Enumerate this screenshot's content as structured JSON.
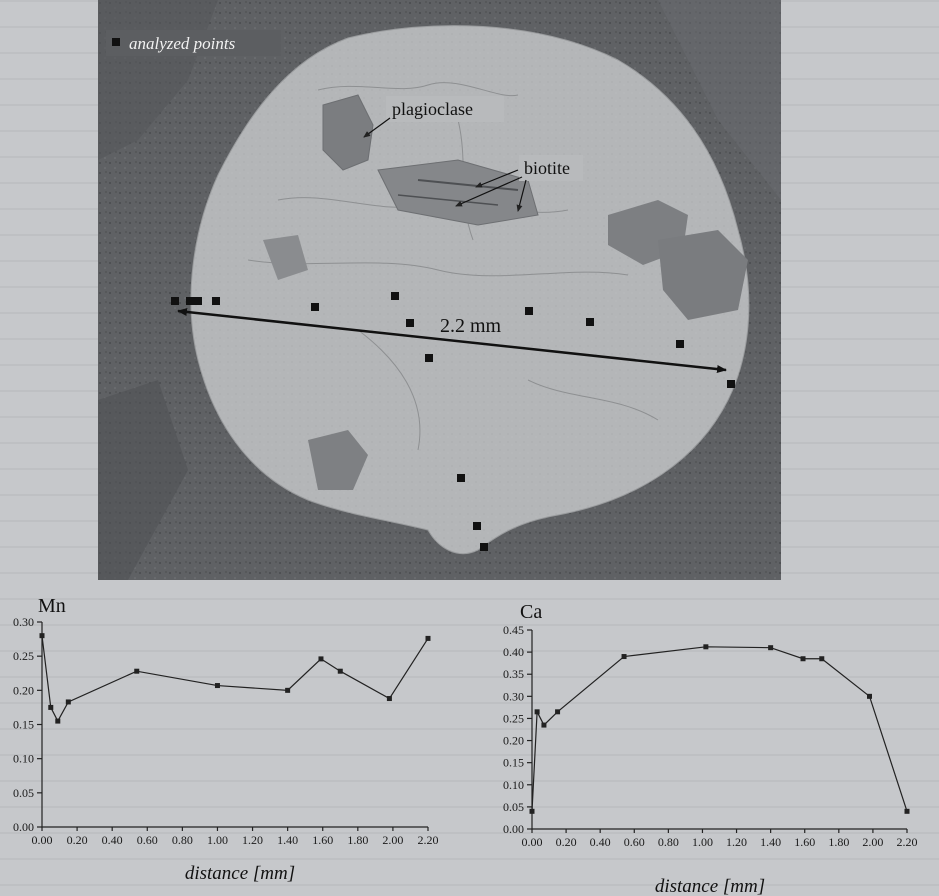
{
  "figure": {
    "legend_label": "analyzed points",
    "label_plagioclase": "plagioclase",
    "label_biotite": "biotite",
    "scale_label": "2.2 mm"
  },
  "chart_data": [
    {
      "type": "line",
      "title": "Mn",
      "xlabel": "distance  [mm]",
      "ylabel": "",
      "xlim": [
        0,
        2.2
      ],
      "ylim": [
        0,
        0.3
      ],
      "x_ticks": [
        "0.00",
        "0.20",
        "0.40",
        "0.60",
        "0.80",
        "1.00",
        "1.20",
        "1.40",
        "1.60",
        "1.80",
        "2.00",
        "2.20"
      ],
      "y_ticks": [
        "0.00",
        "0.05",
        "0.10",
        "0.15",
        "0.20",
        "0.25",
        "0.30"
      ],
      "x": [
        0.0,
        0.05,
        0.09,
        0.15,
        0.54,
        1.0,
        1.4,
        1.59,
        1.7,
        1.98,
        2.2
      ],
      "y": [
        0.28,
        0.175,
        0.155,
        0.183,
        0.228,
        0.207,
        0.2,
        0.246,
        0.228,
        0.188,
        0.276
      ]
    },
    {
      "type": "line",
      "title": "Ca",
      "xlabel": "distance  [mm]",
      "ylabel": "",
      "xlim": [
        0,
        2.2
      ],
      "ylim": [
        0,
        0.45
      ],
      "x_ticks": [
        "0.00",
        "0.20",
        "0.40",
        "0.60",
        "0.80",
        "1.00",
        "1.20",
        "1.40",
        "1.60",
        "1.80",
        "2.00",
        "2.20"
      ],
      "y_ticks": [
        "0.00",
        "0.05",
        "0.10",
        "0.15",
        "0.20",
        "0.25",
        "0.30",
        "0.35",
        "0.40",
        "0.45"
      ],
      "x": [
        0.0,
        0.03,
        0.07,
        0.15,
        0.54,
        1.02,
        1.4,
        1.59,
        1.7,
        1.98,
        2.2
      ],
      "y": [
        0.04,
        0.265,
        0.235,
        0.265,
        0.39,
        0.412,
        0.41,
        0.385,
        0.385,
        0.3,
        0.04
      ]
    }
  ]
}
